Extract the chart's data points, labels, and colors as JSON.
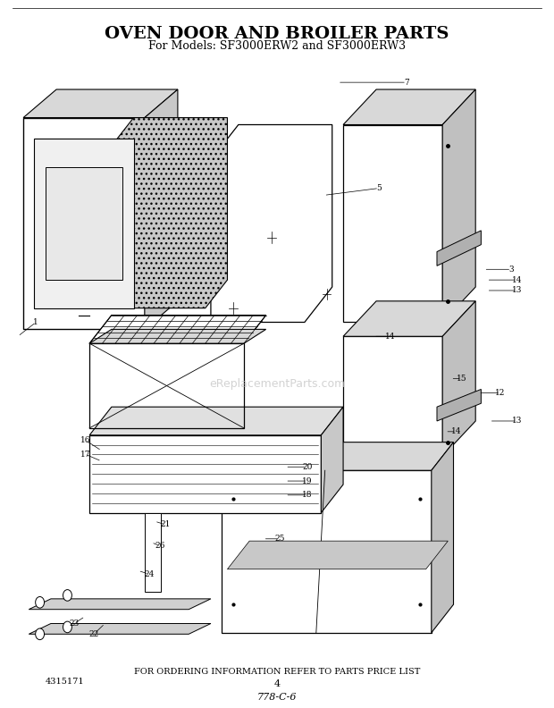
{
  "title": "OVEN DOOR AND BROILER PARTS",
  "subtitle": "For Models: SF3000ERW2 and SF3000ERW3",
  "footer_text": "FOR ORDERING INFORMATION REFER TO PARTS PRICE LIST",
  "part_number_left": "4315171",
  "page_number": "4",
  "doc_number": "778-C-6",
  "watermark": "eReplacementParts.com",
  "bg_color": "#ffffff"
}
